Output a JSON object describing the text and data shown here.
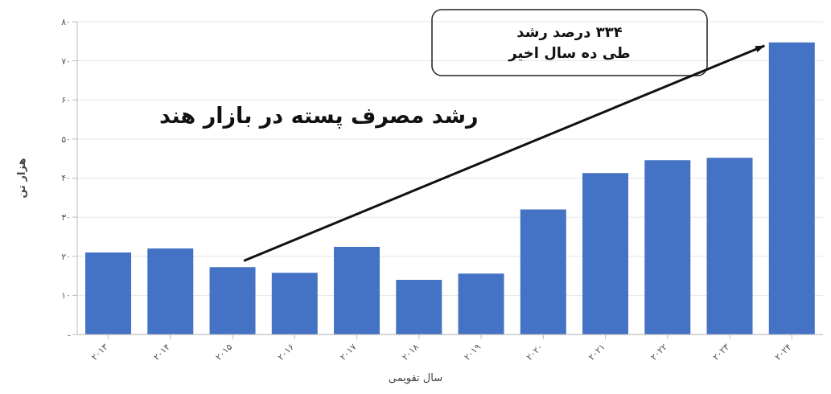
{
  "chart_data": {
    "type": "bar",
    "title": "رشد مصرف پسته در بازار هند",
    "ylabel": "هزار تن",
    "xlabel": "سال تقویمی",
    "annotations": [
      "۳۳۴ درصد رشد\nطی ده سال اخیر"
    ],
    "categories": [
      "۲۰۱۳",
      "۲۰۱۴",
      "۲۰۱۵",
      "۲۰۱۶",
      "۲۰۱۷",
      "۲۰۱۸",
      "۲۰۱۹",
      "۲۰۲۰",
      "۲۰۲۱",
      "۲۰۲۲",
      "۲۰۲۳",
      "۲۰۲۴"
    ],
    "values": [
      21,
      22,
      17.2,
      15.8,
      22.4,
      14,
      15.6,
      32,
      41.3,
      44.6,
      45.2,
      74.7
    ],
    "color": "#4472c4",
    "ylim": [
      0,
      80
    ],
    "yticks": [
      {
        "value": 0,
        "label": "-"
      },
      {
        "value": 10,
        "label": "۱۰"
      },
      {
        "value": 20,
        "label": "۲۰"
      },
      {
        "value": 30,
        "label": "۳۰"
      },
      {
        "value": 40,
        "label": "۴۰"
      },
      {
        "value": 50,
        "label": "۵۰"
      },
      {
        "value": 60,
        "label": "۶۰"
      },
      {
        "value": 70,
        "label": "۷۰"
      },
      {
        "value": 80,
        "label": "۸۰"
      }
    ],
    "grid": "y"
  }
}
